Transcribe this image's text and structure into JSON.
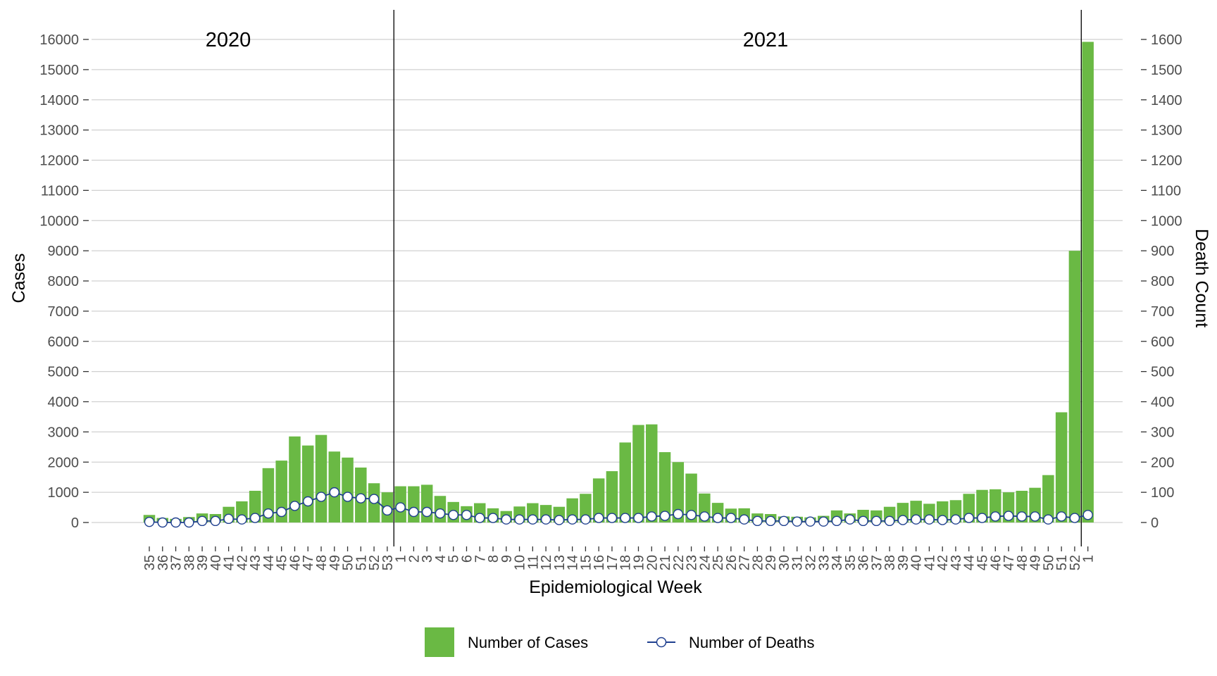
{
  "chart_data": {
    "type": "bar",
    "xlabel": "Epidemiological Week",
    "ylabel": "Cases",
    "y2label": "Death Count",
    "ylim": [
      0,
      16000
    ],
    "y2lim": [
      0,
      1600
    ],
    "yticks": [
      0,
      1000,
      2000,
      3000,
      4000,
      5000,
      6000,
      7000,
      8000,
      9000,
      10000,
      11000,
      12000,
      13000,
      14000,
      15000,
      16000
    ],
    "y2ticks": [
      0,
      100,
      200,
      300,
      400,
      500,
      600,
      700,
      800,
      900,
      1000,
      1100,
      1200,
      1300,
      1400,
      1500,
      1600
    ],
    "grid": "horizontal",
    "legend_position": "bottom",
    "colors": {
      "cases": "#6ab944",
      "deaths_line": "#1f3f8f",
      "deaths_marker_fill": "#ffffff",
      "grid": "#d0d0d0"
    },
    "year_labels": [
      "2020",
      "2021"
    ],
    "categories": [
      "35",
      "36",
      "37",
      "38",
      "39",
      "40",
      "41",
      "42",
      "43",
      "44",
      "45",
      "46",
      "47",
      "48",
      "49",
      "50",
      "51",
      "52",
      "53",
      "1",
      "2",
      "3",
      "4",
      "5",
      "6",
      "7",
      "8",
      "9",
      "10",
      "11",
      "12",
      "13",
      "14",
      "15",
      "16",
      "17",
      "18",
      "19",
      "20",
      "21",
      "22",
      "23",
      "24",
      "25",
      "26",
      "27",
      "28",
      "29",
      "30",
      "31",
      "32",
      "33",
      "34",
      "35",
      "36",
      "37",
      "38",
      "39",
      "40",
      "41",
      "42",
      "43",
      "44",
      "45",
      "46",
      "47",
      "48",
      "49",
      "50",
      "51",
      "52",
      "1"
    ],
    "series": [
      {
        "name": "Number of Cases",
        "type": "bar",
        "axis": "left",
        "values": [
          250,
          150,
          120,
          180,
          300,
          280,
          520,
          700,
          1050,
          1800,
          2050,
          2850,
          2550,
          2900,
          2350,
          2150,
          1820,
          1300,
          1000,
          1200,
          1200,
          1250,
          880,
          680,
          540,
          640,
          470,
          380,
          530,
          640,
          580,
          520,
          800,
          950,
          1460,
          1700,
          2650,
          3230,
          3250,
          2330,
          2000,
          1620,
          960,
          650,
          460,
          470,
          300,
          280,
          200,
          190,
          170,
          220,
          400,
          300,
          420,
          400,
          520,
          650,
          720,
          620,
          700,
          740,
          950,
          1080,
          1100,
          1000,
          1050,
          1150,
          1570,
          3650,
          9000,
          15920
        ]
      },
      {
        "name": "Number of Deaths",
        "type": "line",
        "axis": "right",
        "values": [
          2,
          0,
          0,
          0,
          5,
          5,
          12,
          10,
          15,
          30,
          35,
          55,
          70,
          85,
          100,
          85,
          80,
          78,
          40,
          50,
          35,
          35,
          30,
          25,
          25,
          15,
          15,
          10,
          10,
          10,
          10,
          8,
          10,
          10,
          15,
          15,
          15,
          15,
          20,
          22,
          28,
          25,
          20,
          15,
          15,
          10,
          5,
          5,
          5,
          3,
          3,
          3,
          5,
          10,
          5,
          5,
          5,
          8,
          10,
          10,
          8,
          10,
          15,
          15,
          20,
          22,
          20,
          20,
          10,
          20,
          15,
          25
        ]
      }
    ]
  }
}
